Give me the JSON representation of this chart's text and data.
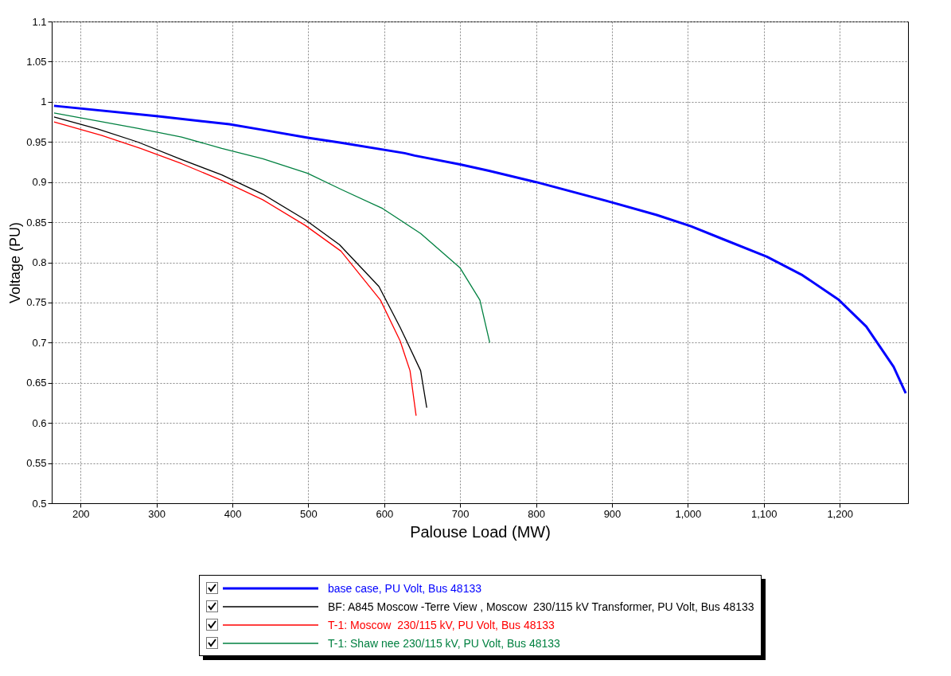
{
  "chart_data": {
    "type": "line",
    "xlabel": "Palouse Load (MW)",
    "ylabel": "Voltage (PU)",
    "xlim": [
      162,
      1290
    ],
    "ylim": [
      0.5,
      1.1
    ],
    "xticks": [
      200,
      300,
      400,
      500,
      600,
      700,
      800,
      900,
      {
        "value": 1000,
        "label": "1,000"
      },
      {
        "value": 1100,
        "label": "1,100"
      },
      {
        "value": 1200,
        "label": "1,200"
      }
    ],
    "yticks": [
      0.5,
      0.55,
      0.6,
      0.65,
      0.7,
      0.75,
      0.8,
      0.85,
      0.9,
      0.95,
      1,
      1.05,
      1.1
    ],
    "grid": true,
    "legend": "bottom",
    "marker": "none",
    "line_style": "solid",
    "series": [
      {
        "name": "base case, PU Volt, Bus 48133",
        "color": "#0000ff",
        "x": [
          165,
          302,
          396,
          440,
          501,
          543,
          627,
          640,
          700,
          738,
          800,
          895,
          959,
          1004,
          1046,
          1104,
          1151,
          1198,
          1235,
          1271,
          1287
        ],
        "values": [
          0.995,
          0.982,
          0.972,
          0.965,
          0.955,
          0.949,
          0.936,
          0.933,
          0.922,
          0.914,
          0.9,
          0.876,
          0.859,
          0.845,
          0.829,
          0.807,
          0.784,
          0.754,
          0.72,
          0.67,
          0.637
        ]
      },
      {
        "name": "BF: A845 Moscow -Terre View , Moscow  230/115 kV Transformer, PU Volt, Bus 48133",
        "color": "#000000",
        "x": [
          165,
          223,
          275,
          333,
          386,
          440,
          496,
          541,
          593,
          621,
          648,
          656
        ],
        "values": [
          0.981,
          0.966,
          0.95,
          0.928,
          0.909,
          0.885,
          0.853,
          0.822,
          0.77,
          0.719,
          0.665,
          0.619
        ]
      },
      {
        "name": "T-1: Moscow  230/115 kV, PU Volt, Bus 48133",
        "color": "#ff0000",
        "x": [
          165,
          228,
          279,
          333,
          386,
          440,
          496,
          543,
          595,
          621,
          634,
          642
        ],
        "values": [
          0.975,
          0.958,
          0.942,
          0.923,
          0.902,
          0.878,
          0.846,
          0.814,
          0.753,
          0.702,
          0.665,
          0.609
        ]
      },
      {
        "name": "T-1: Shaw nee 230/115 kV, PU Volt, Bus 48133",
        "color": "#008040",
        "x": [
          165,
          275,
          333,
          386,
          440,
          499,
          543,
          598,
          648,
          700,
          726,
          739
        ],
        "values": [
          0.986,
          0.967,
          0.956,
          0.942,
          0.929,
          0.911,
          0.891,
          0.867,
          0.836,
          0.793,
          0.753,
          0.7
        ]
      }
    ]
  }
}
